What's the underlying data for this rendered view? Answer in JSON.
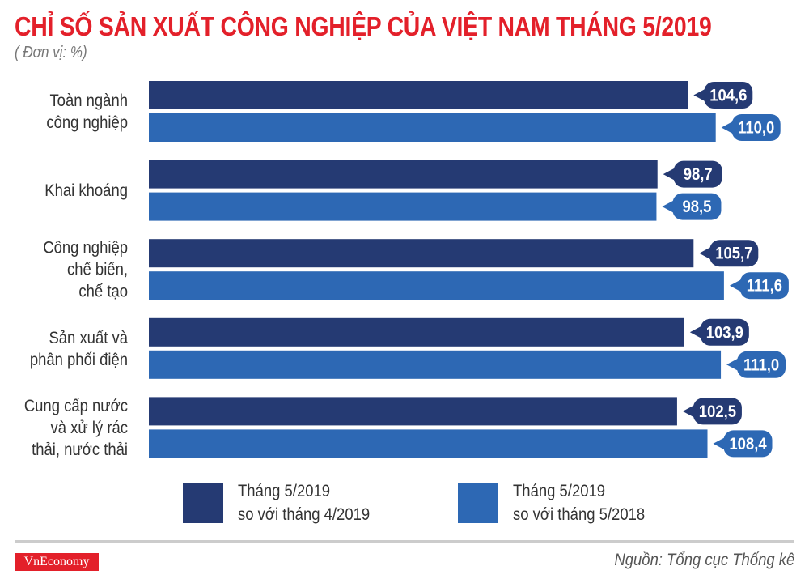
{
  "chart_data": {
    "type": "bar",
    "orientation": "horizontal",
    "title": "CHỈ SỐ SẢN XUẤT CÔNG NGHIỆP CỦA VIỆT NAM THÁNG 5/2019",
    "subtitle": "( Đơn vị: %)",
    "categories": [
      [
        "Toàn ngành",
        "công nghiệp"
      ],
      [
        "Khai khoáng"
      ],
      [
        "Công nghiệp",
        "chế biến,",
        "chế tạo"
      ],
      [
        "Sản xuất và",
        "phân phối điện"
      ],
      [
        "Cung cấp nước",
        "và xử lý rác",
        "thải, nước thải"
      ]
    ],
    "series": [
      {
        "name": "Tháng 5/2019 so với tháng 4/2019",
        "legend_lines": [
          "Tháng 5/2019",
          "so với tháng 4/2019"
        ],
        "color": "#253a73",
        "values": [
          104.6,
          98.7,
          105.7,
          103.9,
          102.5
        ],
        "labels": [
          "104,6",
          "98,7",
          "105,7",
          "103,9",
          "102,5"
        ]
      },
      {
        "name": "Tháng 5/2019 so với tháng 5/2018",
        "legend_lines": [
          "Tháng 5/2019",
          "so với tháng 5/2018"
        ],
        "color": "#2d68b4",
        "values": [
          110.0,
          98.5,
          111.6,
          111.0,
          108.4
        ],
        "labels": [
          "110,0",
          "98,5",
          "111,6",
          "111,0",
          "108,4"
        ]
      }
    ],
    "xlim": [
      0,
      115
    ],
    "grid": false,
    "legend_position": "bottom"
  },
  "footer": {
    "logo": "VnEconomy",
    "source": "Nguồn: Tổng cục Thống kê"
  },
  "colors": {
    "title": "#e3202a"
  }
}
